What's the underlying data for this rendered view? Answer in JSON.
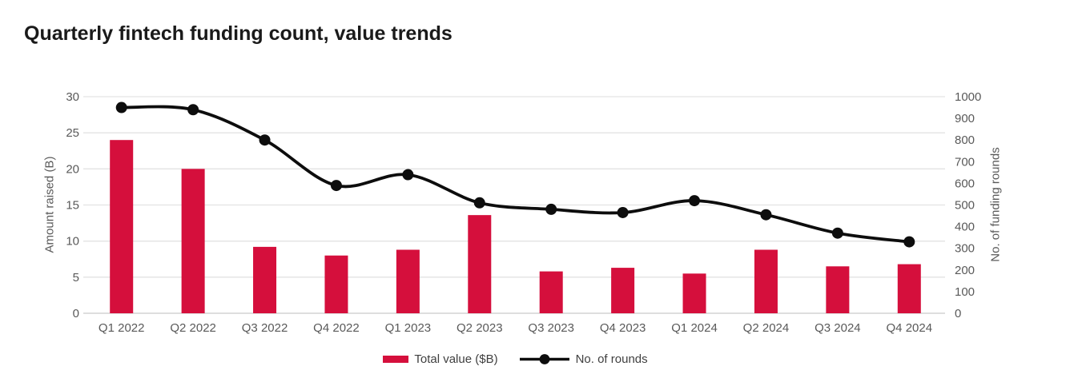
{
  "page": {
    "title": "Quarterly fintech funding count, value trends"
  },
  "chart_data": {
    "type": "combo",
    "title": "Quarterly fintech funding count, value trends",
    "categories": [
      "Q1 2022",
      "Q2 2022",
      "Q3 2022",
      "Q4 2022",
      "Q1 2023",
      "Q2 2023",
      "Q3 2023",
      "Q4 2023",
      "Q1 2024",
      "Q2 2024",
      "Q3 2024",
      "Q4 2024"
    ],
    "series": [
      {
        "name": "Total value ($B)",
        "type": "bar",
        "axis": "left",
        "color": "#d50f3c",
        "values": [
          24,
          20,
          9.2,
          8,
          8.8,
          13.6,
          5.8,
          6.3,
          5.5,
          8.8,
          6.5,
          6.8
        ]
      },
      {
        "name": "No. of rounds",
        "type": "line",
        "axis": "right",
        "color": "#0d0d0d",
        "values": [
          950,
          940,
          800,
          590,
          640,
          510,
          480,
          465,
          520,
          455,
          370,
          330
        ]
      }
    ],
    "left_axis": {
      "label": "Amount raised (B)",
      "min": 0,
      "max": 30,
      "ticks": [
        0,
        5,
        10,
        15,
        20,
        25,
        30
      ]
    },
    "right_axis": {
      "label": "No. of funding rounds",
      "min": 0,
      "max": 1000,
      "ticks": [
        0,
        100,
        200,
        300,
        400,
        500,
        600,
        700,
        800,
        900,
        1000
      ]
    },
    "grid": true,
    "legend_position": "bottom"
  },
  "style": {
    "grid_color": "#e3e3e3",
    "axis_line_color": "#c9c9c9",
    "tick_label_color": "#595959",
    "title_color": "#1a1a1a",
    "legend_text_color": "#3f3f3f",
    "background": "#ffffff"
  }
}
